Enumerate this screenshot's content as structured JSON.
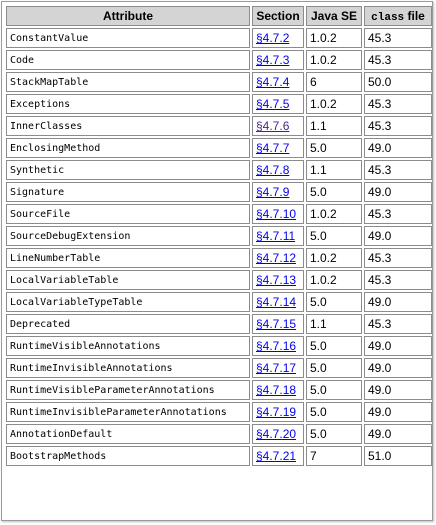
{
  "header": {
    "attribute": "Attribute",
    "section": "Section",
    "java_se": "Java SE",
    "class_code": "class",
    "class_suffix": " file"
  },
  "rows": [
    {
      "attribute": "ConstantValue",
      "section": "§4.7.2",
      "java_se": "1.0.2",
      "class_file": "45.3"
    },
    {
      "attribute": "Code",
      "section": "§4.7.3",
      "java_se": "1.0.2",
      "class_file": "45.3"
    },
    {
      "attribute": "StackMapTable",
      "section": "§4.7.4",
      "java_se": "6",
      "class_file": "50.0"
    },
    {
      "attribute": "Exceptions",
      "section": "§4.7.5",
      "java_se": "1.0.2",
      "class_file": "45.3"
    },
    {
      "attribute": "InnerClasses",
      "section": "§4.7.6",
      "java_se": "1.1",
      "class_file": "45.3",
      "visited": true
    },
    {
      "attribute": "EnclosingMethod",
      "section": "§4.7.7",
      "java_se": "5.0",
      "class_file": "49.0"
    },
    {
      "attribute": "Synthetic",
      "section": "§4.7.8",
      "java_se": "1.1",
      "class_file": "45.3"
    },
    {
      "attribute": "Signature",
      "section": "§4.7.9",
      "java_se": "5.0",
      "class_file": "49.0"
    },
    {
      "attribute": "SourceFile",
      "section": "§4.7.10",
      "java_se": "1.0.2",
      "class_file": "45.3"
    },
    {
      "attribute": "SourceDebugExtension",
      "section": "§4.7.11",
      "java_se": "5.0",
      "class_file": "49.0"
    },
    {
      "attribute": "LineNumberTable",
      "section": "§4.7.12",
      "java_se": "1.0.2",
      "class_file": "45.3"
    },
    {
      "attribute": "LocalVariableTable",
      "section": "§4.7.13",
      "java_se": "1.0.2",
      "class_file": "45.3"
    },
    {
      "attribute": "LocalVariableTypeTable",
      "section": "§4.7.14",
      "java_se": "5.0",
      "class_file": "49.0"
    },
    {
      "attribute": "Deprecated",
      "section": "§4.7.15",
      "java_se": "1.1",
      "class_file": "45.3"
    },
    {
      "attribute": "RuntimeVisibleAnnotations",
      "section": "§4.7.16",
      "java_se": "5.0",
      "class_file": "49.0"
    },
    {
      "attribute": "RuntimeInvisibleAnnotations",
      "section": "§4.7.17",
      "java_se": "5.0",
      "class_file": "49.0"
    },
    {
      "attribute": "RuntimeVisibleParameterAnnotations",
      "section": "§4.7.18",
      "java_se": "5.0",
      "class_file": "49.0"
    },
    {
      "attribute": "RuntimeInvisibleParameterAnnotations",
      "section": "§4.7.19",
      "java_se": "5.0",
      "class_file": "49.0"
    },
    {
      "attribute": "AnnotationDefault",
      "section": "§4.7.20",
      "java_se": "5.0",
      "class_file": "49.0"
    },
    {
      "attribute": "BootstrapMethods",
      "section": "§4.7.21",
      "java_se": "7",
      "class_file": "51.0"
    }
  ]
}
